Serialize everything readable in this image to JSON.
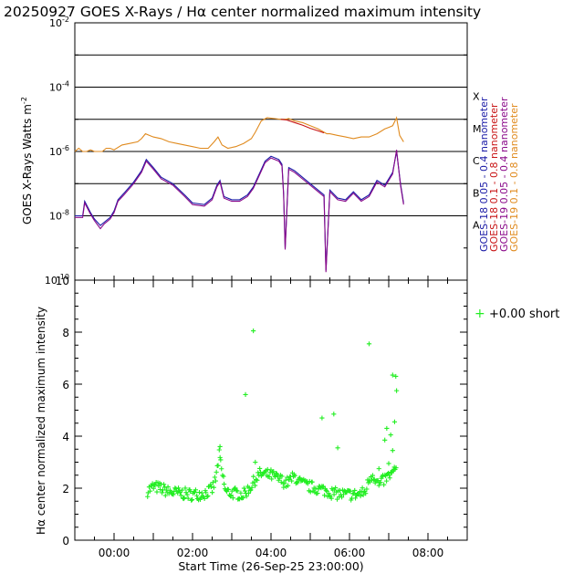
{
  "title": "20250927 GOES X-Rays / Hα center normalized maximum intensity",
  "colors": {
    "goes18_short": "#1a1aa6",
    "goes18_long": "#c81414",
    "goes19_short": "#8a0a8a",
    "goes19_long": "#e08a1e",
    "halpha": "#22ee22",
    "axis": "#000000"
  },
  "chart_data": [
    {
      "type": "line",
      "title": "GOES X-Rays",
      "ylabel": "GOES X-Rays Watts m",
      "ylabel_sup": "-2",
      "yscale": "log",
      "ylim_exp": [
        -10,
        -2
      ],
      "ytick_labels": [
        {
          "exp": -2,
          "text": "10",
          "sup": "-2"
        },
        {
          "exp": -4,
          "text": "10",
          "sup": "-4"
        },
        {
          "exp": -6,
          "text": "10",
          "sup": "-6"
        },
        {
          "exp": -8,
          "text": "10",
          "sup": "-8"
        },
        {
          "exp": -10,
          "text": "10",
          "sup": "-10"
        }
      ],
      "flare_levels": [
        {
          "class": "A",
          "exp": -8
        },
        {
          "class": "B",
          "exp": -7
        },
        {
          "class": "C",
          "exp": -6
        },
        {
          "class": "M",
          "exp": -5
        },
        {
          "class": "X",
          "exp": -4
        },
        {
          "class": "",
          "exp": -3
        }
      ],
      "xlim_hours": [
        -1,
        9
      ],
      "legend": [
        {
          "label": "GOES-18  0.05 - 0.4 nanometer",
          "color_key": "goes18_short"
        },
        {
          "label": "GOES-18  0.1  - 0.8 nanometer",
          "color_key": "goes18_long"
        },
        {
          "label": "GOES-19  0.05 - 0.4 nanometer",
          "color_key": "goes19_short"
        },
        {
          "label": "GOES-19  0.1  - 0.8 nanometer",
          "color_key": "goes19_long"
        }
      ],
      "series": [
        {
          "name": "GOES-19 0.1-0.8 nm",
          "color_key": "goes19_long",
          "x": [
            -1.0,
            -0.9,
            -0.8,
            -0.7,
            -0.6,
            -0.5,
            -0.4,
            -0.3,
            -0.2,
            -0.1,
            0.0,
            0.2,
            0.4,
            0.6,
            0.7,
            0.8,
            0.9,
            1.0,
            1.2,
            1.4,
            1.6,
            1.8,
            2.0,
            2.2,
            2.4,
            2.55,
            2.65,
            2.75,
            2.9,
            3.1,
            3.3,
            3.5,
            3.6,
            3.75,
            3.9,
            4.1,
            4.25,
            4.32,
            4.36,
            4.45,
            4.6,
            4.8,
            5.0,
            5.2,
            5.35,
            5.42,
            5.5,
            5.7,
            5.9,
            6.1,
            6.3,
            6.5,
            6.7,
            6.9,
            7.0,
            7.1,
            7.2,
            7.28,
            7.38
          ],
          "y": [
            -6.0,
            -5.9,
            -6.0,
            -6.0,
            -5.95,
            -6.0,
            -6.0,
            -6.0,
            -5.9,
            -5.9,
            -5.95,
            -5.8,
            -5.75,
            -5.7,
            -5.6,
            -5.45,
            -5.5,
            -5.55,
            -5.6,
            -5.7,
            -5.75,
            -5.8,
            -5.85,
            -5.9,
            -5.9,
            -5.7,
            -5.55,
            -5.8,
            -5.9,
            -5.85,
            -5.75,
            -5.6,
            -5.4,
            -5.05,
            -4.95,
            -4.98,
            -5.0,
            -5.0,
            -5.0,
            -4.98,
            -5.05,
            -5.1,
            -5.2,
            -5.3,
            -5.4,
            -5.45,
            -5.45,
            -5.5,
            -5.55,
            -5.6,
            -5.55,
            -5.55,
            -5.45,
            -5.3,
            -5.25,
            -5.2,
            -4.95,
            -5.5,
            -5.7
          ]
        },
        {
          "name": "GOES-18 0.1-0.8 nm",
          "color_key": "goes18_long",
          "x": [
            4.25,
            4.4,
            4.6,
            4.8,
            5.0,
            5.2,
            5.35
          ],
          "y": [
            -5.0,
            -5.02,
            -5.1,
            -5.18,
            -5.28,
            -5.36,
            -5.42
          ]
        },
        {
          "name": "GOES-18 0.05-0.4 nm",
          "color_key": "goes18_short",
          "x": [
            -1.0,
            -0.8,
            -0.75,
            -0.6,
            -0.5,
            -0.35,
            -0.25,
            -0.1,
            0.0,
            0.1,
            0.25,
            0.5,
            0.7,
            0.82,
            1.0,
            1.2,
            1.5,
            1.8,
            2.0,
            2.3,
            2.5,
            2.62,
            2.7,
            2.8,
            3.0,
            3.2,
            3.4,
            3.55,
            3.7,
            3.85,
            4.0,
            4.2,
            4.28,
            4.32,
            4.36,
            4.45,
            4.6,
            4.8,
            5.0,
            5.2,
            5.35,
            5.4,
            5.5,
            5.7,
            5.9,
            6.1,
            6.3,
            6.5,
            6.7,
            6.9,
            7.0,
            7.1,
            7.2,
            7.3,
            7.38
          ],
          "y": [
            -8.0,
            -8.0,
            -7.55,
            -7.9,
            -8.1,
            -8.3,
            -8.2,
            -8.05,
            -7.85,
            -7.5,
            -7.3,
            -6.95,
            -6.6,
            -6.25,
            -6.5,
            -6.8,
            -7.0,
            -7.35,
            -7.6,
            -7.65,
            -7.45,
            -7.05,
            -6.9,
            -7.4,
            -7.5,
            -7.5,
            -7.35,
            -7.1,
            -6.7,
            -6.3,
            -6.15,
            -6.25,
            -6.4,
            -7.3,
            -9.0,
            -6.5,
            -6.6,
            -6.8,
            -7.0,
            -7.2,
            -7.35,
            -9.7,
            -7.2,
            -7.45,
            -7.5,
            -7.25,
            -7.5,
            -7.35,
            -6.9,
            -7.05,
            -6.85,
            -6.65,
            -6.0,
            -7.0,
            -7.6
          ]
        },
        {
          "name": "GOES-19 0.05-0.4 nm",
          "color_key": "goes19_short",
          "x": [
            -1.0,
            -0.8,
            -0.75,
            -0.6,
            -0.5,
            -0.35,
            -0.25,
            -0.1,
            0.0,
            0.1,
            0.25,
            0.5,
            0.7,
            0.82,
            1.0,
            1.2,
            1.5,
            1.8,
            2.0,
            2.3,
            2.5,
            2.62,
            2.7,
            2.8,
            3.0,
            3.2,
            3.4,
            3.55,
            3.7,
            3.85,
            4.0,
            4.2,
            4.28,
            4.32,
            4.36,
            4.45,
            4.6,
            4.8,
            5.0,
            5.2,
            5.35,
            5.4,
            5.5,
            5.7,
            5.9,
            6.1,
            6.3,
            6.5,
            6.7,
            6.9,
            7.0,
            7.1,
            7.2,
            7.3,
            7.38
          ],
          "y": [
            -8.05,
            -8.05,
            -7.6,
            -7.95,
            -8.15,
            -8.4,
            -8.25,
            -8.1,
            -7.9,
            -7.55,
            -7.35,
            -7.0,
            -6.65,
            -6.3,
            -6.55,
            -6.85,
            -7.05,
            -7.4,
            -7.65,
            -7.7,
            -7.5,
            -7.1,
            -6.95,
            -7.45,
            -7.55,
            -7.55,
            -7.4,
            -7.15,
            -6.75,
            -6.35,
            -6.2,
            -6.3,
            -6.45,
            -7.35,
            -9.05,
            -6.55,
            -6.65,
            -6.85,
            -7.05,
            -7.25,
            -7.4,
            -9.75,
            -7.25,
            -7.5,
            -7.55,
            -7.3,
            -7.55,
            -7.4,
            -6.95,
            -7.1,
            -6.9,
            -6.7,
            -5.95,
            -7.05,
            -7.65
          ]
        }
      ]
    },
    {
      "type": "scatter",
      "title": "Hα center normalized maximum intensity",
      "ylabel": "Hα center normalized maximum intensity",
      "xlabel": "Start Time (26-Sep-25 23:00:00)",
      "ylim": [
        0,
        10
      ],
      "yticks": [
        "0",
        "2",
        "4",
        "6",
        "8",
        "10"
      ],
      "xlim_hours": [
        -1,
        9
      ],
      "xtick_labels": [
        {
          "h": 0,
          "text": "00:00"
        },
        {
          "h": 2,
          "text": "02:00"
        },
        {
          "h": 4,
          "text": "04:00"
        },
        {
          "h": 6,
          "text": "06:00"
        },
        {
          "h": 8,
          "text": "08:00"
        }
      ],
      "legend": {
        "marker": "+",
        "label": "+0.00 short"
      },
      "outliers": [
        [
          3.55,
          8.05
        ],
        [
          3.35,
          5.6
        ],
        [
          6.5,
          7.55
        ],
        [
          5.3,
          4.7
        ],
        [
          5.6,
          4.85
        ],
        [
          5.7,
          3.55
        ],
        [
          7.1,
          6.35
        ],
        [
          7.18,
          6.3
        ],
        [
          7.2,
          5.75
        ],
        [
          6.95,
          4.3
        ],
        [
          7.15,
          4.55
        ],
        [
          7.05,
          4.05
        ],
        [
          6.9,
          3.85
        ],
        [
          7.1,
          3.45
        ],
        [
          2.7,
          3.6
        ],
        [
          3.6,
          3.0
        ],
        [
          7.0,
          2.95
        ],
        [
          6.75,
          2.75
        ]
      ],
      "trend": [
        [
          0.85,
          1.9
        ],
        [
          1.0,
          2.05
        ],
        [
          1.2,
          2.0
        ],
        [
          1.4,
          1.85
        ],
        [
          1.7,
          1.8
        ],
        [
          2.0,
          1.75
        ],
        [
          2.3,
          1.8
        ],
        [
          2.5,
          1.95
        ],
        [
          2.6,
          2.4
        ],
        [
          2.68,
          3.3
        ],
        [
          2.75,
          2.6
        ],
        [
          2.85,
          1.85
        ],
        [
          3.1,
          1.8
        ],
        [
          3.3,
          1.75
        ],
        [
          3.5,
          2.1
        ],
        [
          3.7,
          2.55
        ],
        [
          4.0,
          2.5
        ],
        [
          4.2,
          2.35
        ],
        [
          4.4,
          2.2
        ],
        [
          4.6,
          2.45
        ],
        [
          4.75,
          2.2
        ],
        [
          5.0,
          2.05
        ],
        [
          5.3,
          1.95
        ],
        [
          5.6,
          1.8
        ],
        [
          5.9,
          1.75
        ],
        [
          6.2,
          1.75
        ],
        [
          6.4,
          1.85
        ],
        [
          6.5,
          2.35
        ],
        [
          6.6,
          2.55
        ],
        [
          6.75,
          2.1
        ],
        [
          6.9,
          2.35
        ],
        [
          7.05,
          2.5
        ],
        [
          7.2,
          2.75
        ]
      ]
    }
  ]
}
